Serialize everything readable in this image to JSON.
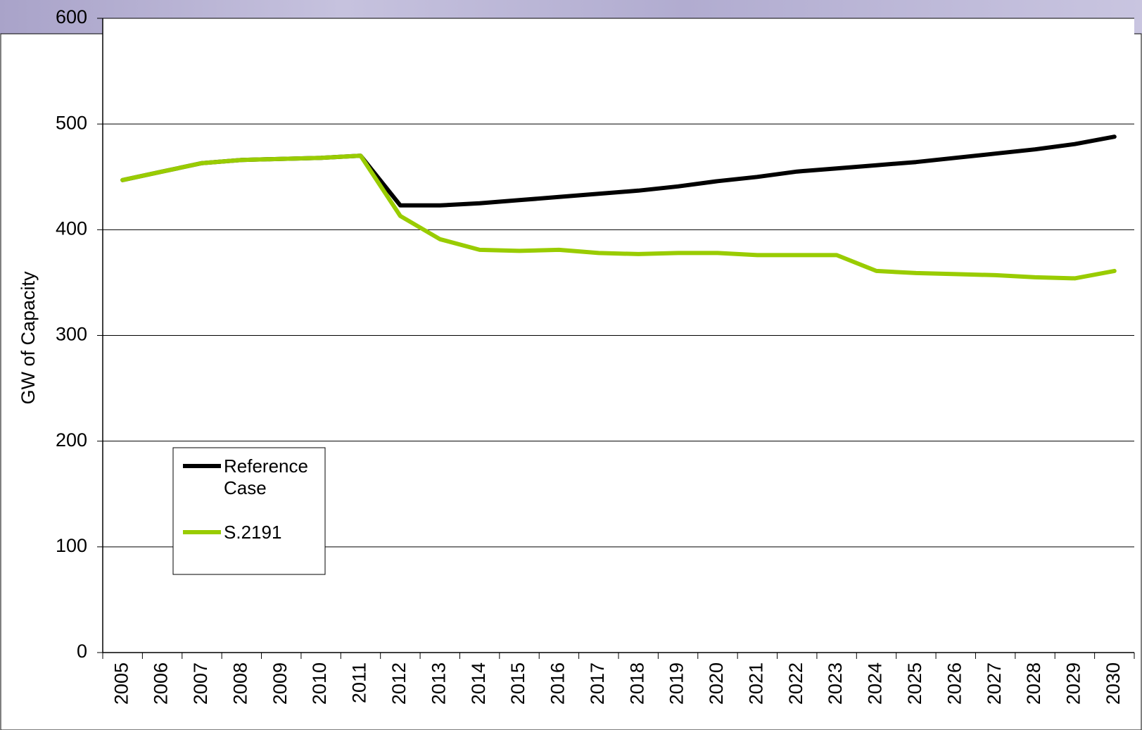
{
  "chart_data": {
    "type": "line",
    "y_label": "GW of Capacity",
    "categories": [
      "2005",
      "2006",
      "2007",
      "2008",
      "2009",
      "2010",
      "2011",
      "2012",
      "2013",
      "2014",
      "2015",
      "2016",
      "2017",
      "2018",
      "2019",
      "2020",
      "2021",
      "2022",
      "2023",
      "2024",
      "2025",
      "2026",
      "2027",
      "2028",
      "2029",
      "2030"
    ],
    "series": [
      {
        "name": "Reference Case",
        "color": "#000000",
        "values": [
          447,
          455,
          463,
          466,
          467,
          468,
          470,
          423,
          423,
          425,
          428,
          431,
          434,
          437,
          441,
          446,
          450,
          455,
          458,
          461,
          464,
          468,
          472,
          476,
          481,
          488
        ]
      },
      {
        "name": "S.2191",
        "color": "#99cc00",
        "values": [
          447,
          455,
          463,
          466,
          467,
          468,
          470,
          413,
          391,
          381,
          380,
          381,
          378,
          377,
          378,
          378,
          376,
          376,
          376,
          361,
          359,
          358,
          357,
          355,
          354,
          361
        ]
      }
    ],
    "ylim": [
      0,
      600
    ],
    "yticks": [
      0,
      100,
      200,
      300,
      400,
      500,
      600
    ],
    "grid": true
  }
}
